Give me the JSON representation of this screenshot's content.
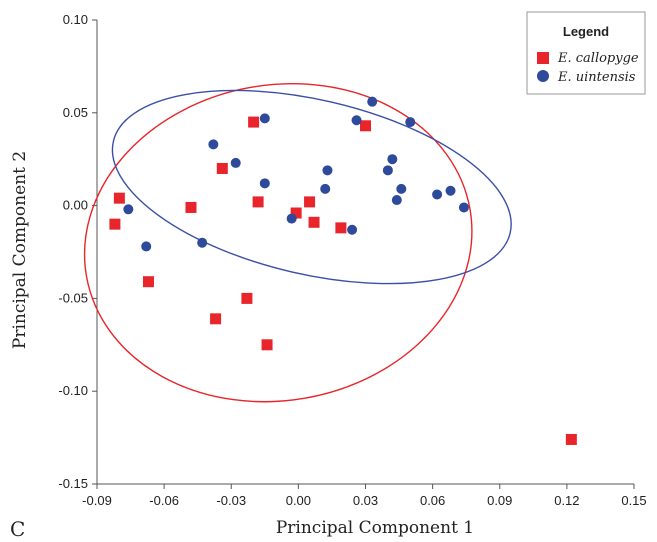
{
  "chart_data": {
    "type": "scatter",
    "panel_label": "C",
    "xlabel": "Principal Component 1",
    "ylabel": "Principal Component 2",
    "xlim": [
      -0.09,
      0.15
    ],
    "ylim": [
      -0.15,
      0.1
    ],
    "x_ticks": [
      -0.09,
      -0.06,
      -0.03,
      0.0,
      0.03,
      0.06,
      0.09,
      0.12,
      0.15
    ],
    "x_tick_labels": [
      "-0.09",
      "-0.06",
      "-0.03",
      "0.00",
      "0.03",
      "0.06",
      "0.09",
      "0.12",
      "0.15"
    ],
    "y_ticks": [
      0.1,
      0.05,
      0.0,
      -0.05,
      -0.1,
      -0.15
    ],
    "y_tick_labels": [
      "0.10",
      "0.05",
      "0.00",
      "-0.05",
      "-0.10",
      "-0.15"
    ],
    "legend": {
      "title": "Legend",
      "position": "top-right"
    },
    "series": [
      {
        "name": "E. callopyge",
        "marker": "square",
        "color": "#e8252b",
        "points": [
          [
            -0.08,
            0.004
          ],
          [
            -0.082,
            -0.01
          ],
          [
            -0.067,
            -0.041
          ],
          [
            -0.048,
            -0.001
          ],
          [
            -0.034,
            0.02
          ],
          [
            -0.037,
            -0.061
          ],
          [
            -0.02,
            0.045
          ],
          [
            -0.018,
            0.002
          ],
          [
            -0.023,
            -0.05
          ],
          [
            -0.014,
            -0.075
          ],
          [
            -0.001,
            -0.004
          ],
          [
            0.005,
            0.002
          ],
          [
            0.007,
            -0.009
          ],
          [
            0.019,
            -0.012
          ],
          [
            0.03,
            0.043
          ],
          [
            0.122,
            -0.126
          ]
        ],
        "ellipse": {
          "center": [
            -0.009,
            -0.02
          ],
          "semi_axes": [
            0.087,
            0.085
          ],
          "rotation_deg": -10,
          "color": "#e8252b"
        }
      },
      {
        "name": "E. uintensis",
        "marker": "circle",
        "color": "#2e4a9a",
        "points": [
          [
            -0.076,
            -0.002
          ],
          [
            -0.068,
            -0.022
          ],
          [
            -0.043,
            -0.02
          ],
          [
            -0.038,
            0.033
          ],
          [
            -0.028,
            0.023
          ],
          [
            -0.015,
            0.047
          ],
          [
            -0.015,
            0.012
          ],
          [
            -0.003,
            -0.007
          ],
          [
            0.012,
            0.009
          ],
          [
            0.013,
            0.019
          ],
          [
            0.024,
            -0.013
          ],
          [
            0.026,
            0.046
          ],
          [
            0.033,
            0.056
          ],
          [
            0.04,
            0.019
          ],
          [
            0.042,
            0.025
          ],
          [
            0.044,
            0.003
          ],
          [
            0.046,
            0.009
          ],
          [
            0.05,
            0.045
          ],
          [
            0.062,
            0.006
          ],
          [
            0.068,
            0.008
          ],
          [
            0.074,
            -0.001
          ]
        ],
        "ellipse": {
          "center": [
            0.006,
            0.01
          ],
          "semi_axes": [
            0.091,
            0.047
          ],
          "rotation_deg": 13,
          "color": "#3a4fa8"
        }
      }
    ]
  }
}
